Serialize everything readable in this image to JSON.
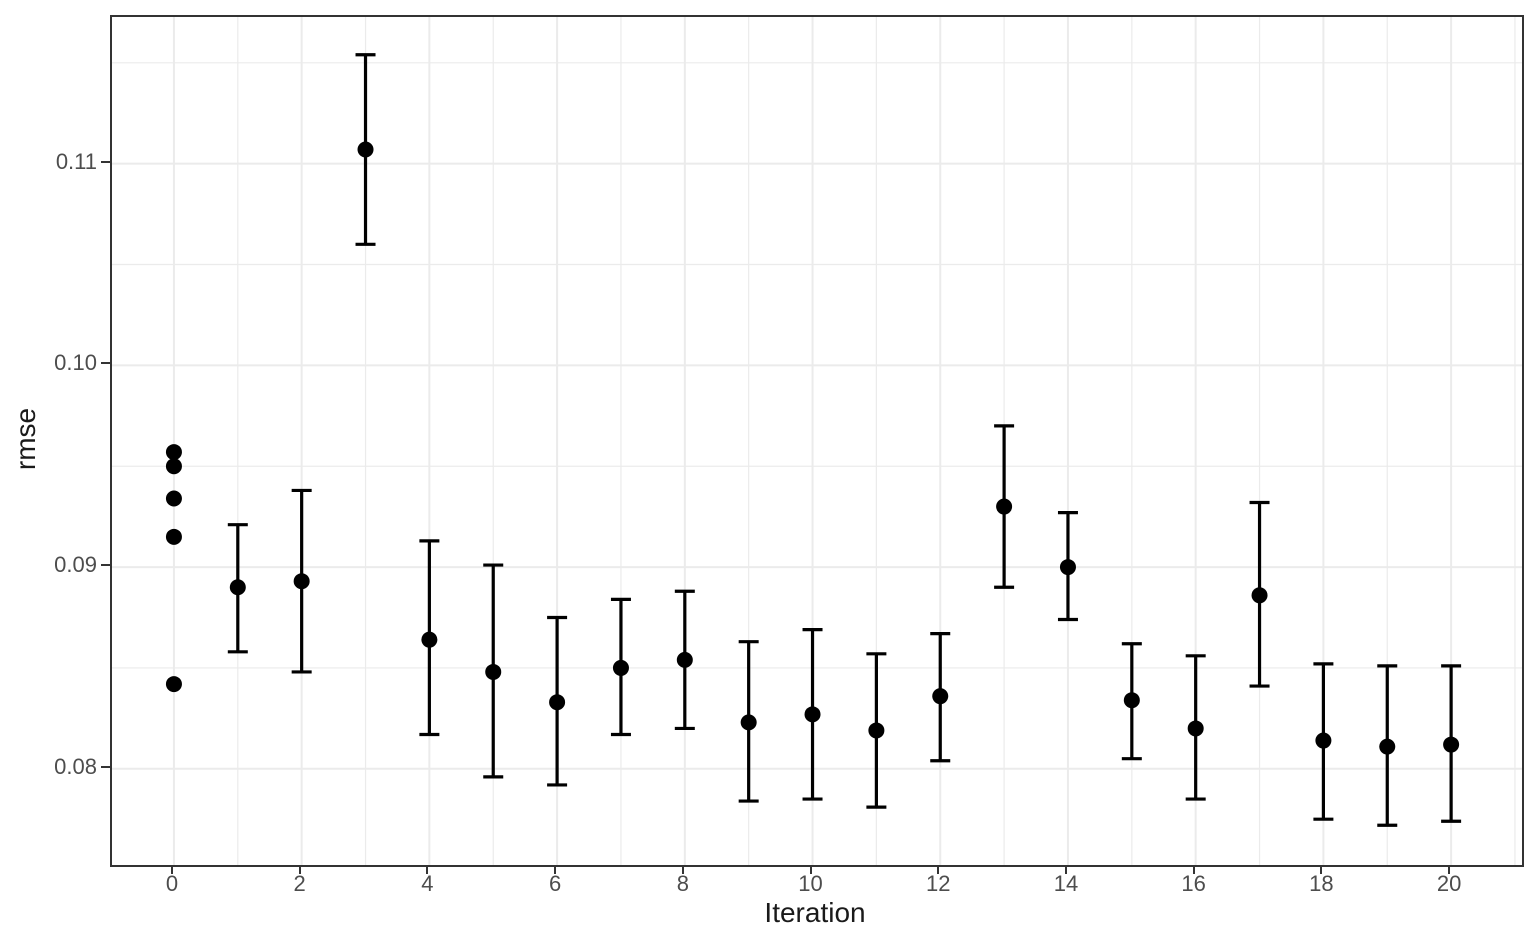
{
  "chart_data": {
    "type": "scatter",
    "subtype": "pointrange-errorbar",
    "title": "",
    "xlabel": "Iteration",
    "ylabel": "rmse",
    "legend": "none",
    "grid": "on",
    "x_domain": [
      -0.97,
      21.11
    ],
    "y_domain": [
      0.07523,
      0.11727
    ],
    "x_ticks": {
      "major": [
        0,
        2,
        4,
        6,
        8,
        10,
        12,
        14,
        16,
        18,
        20
      ],
      "labels": [
        "0",
        "2",
        "4",
        "6",
        "8",
        "10",
        "12",
        "14",
        "16",
        "18",
        "20"
      ],
      "minor": [
        1,
        3,
        5,
        7,
        9,
        11,
        13,
        15,
        17,
        19,
        21
      ]
    },
    "y_ticks": {
      "major": [
        0.08,
        0.09,
        0.1,
        0.11
      ],
      "labels": [
        "0.08",
        "0.09",
        "0.10",
        "0.11"
      ],
      "minor": [
        0.085,
        0.095,
        0.105,
        0.115
      ]
    },
    "initial_points": {
      "iteration": 0,
      "values": [
        0.0957,
        0.095,
        0.0934,
        0.0915,
        0.0842
      ]
    },
    "pointrange": [
      {
        "iteration": 1,
        "mean": 0.089,
        "lower": 0.0858,
        "upper": 0.0921
      },
      {
        "iteration": 2,
        "mean": 0.0893,
        "lower": 0.0848,
        "upper": 0.0938
      },
      {
        "iteration": 3,
        "mean": 0.1107,
        "lower": 0.106,
        "upper": 0.1154
      },
      {
        "iteration": 4,
        "mean": 0.0864,
        "lower": 0.0817,
        "upper": 0.0913
      },
      {
        "iteration": 5,
        "mean": 0.0848,
        "lower": 0.0796,
        "upper": 0.0901
      },
      {
        "iteration": 6,
        "mean": 0.0833,
        "lower": 0.0792,
        "upper": 0.0875
      },
      {
        "iteration": 7,
        "mean": 0.085,
        "lower": 0.0817,
        "upper": 0.0884
      },
      {
        "iteration": 8,
        "mean": 0.0854,
        "lower": 0.082,
        "upper": 0.0888
      },
      {
        "iteration": 9,
        "mean": 0.0823,
        "lower": 0.0784,
        "upper": 0.0863
      },
      {
        "iteration": 10,
        "mean": 0.0827,
        "lower": 0.0785,
        "upper": 0.0869
      },
      {
        "iteration": 11,
        "mean": 0.0819,
        "lower": 0.0781,
        "upper": 0.0857
      },
      {
        "iteration": 12,
        "mean": 0.0836,
        "lower": 0.0804,
        "upper": 0.0867
      },
      {
        "iteration": 13,
        "mean": 0.093,
        "lower": 0.089,
        "upper": 0.097
      },
      {
        "iteration": 14,
        "mean": 0.09,
        "lower": 0.0874,
        "upper": 0.0927
      },
      {
        "iteration": 15,
        "mean": 0.0834,
        "lower": 0.0805,
        "upper": 0.0862
      },
      {
        "iteration": 16,
        "mean": 0.082,
        "lower": 0.0785,
        "upper": 0.0856
      },
      {
        "iteration": 17,
        "mean": 0.0886,
        "lower": 0.0841,
        "upper": 0.0932
      },
      {
        "iteration": 18,
        "mean": 0.0814,
        "lower": 0.0775,
        "upper": 0.0852
      },
      {
        "iteration": 19,
        "mean": 0.0811,
        "lower": 0.0772,
        "upper": 0.0851
      },
      {
        "iteration": 20,
        "mean": 0.0812,
        "lower": 0.0774,
        "upper": 0.0851
      }
    ],
    "style": {
      "point_color": "#000000",
      "errorbar_color": "#000000",
      "grid_color": "#ebebeb",
      "panel_border_color": "#333333",
      "tick_label_color": "#4d4d4d",
      "axis_title_color": "#1a1a1a",
      "background": "#ffffff"
    }
  }
}
